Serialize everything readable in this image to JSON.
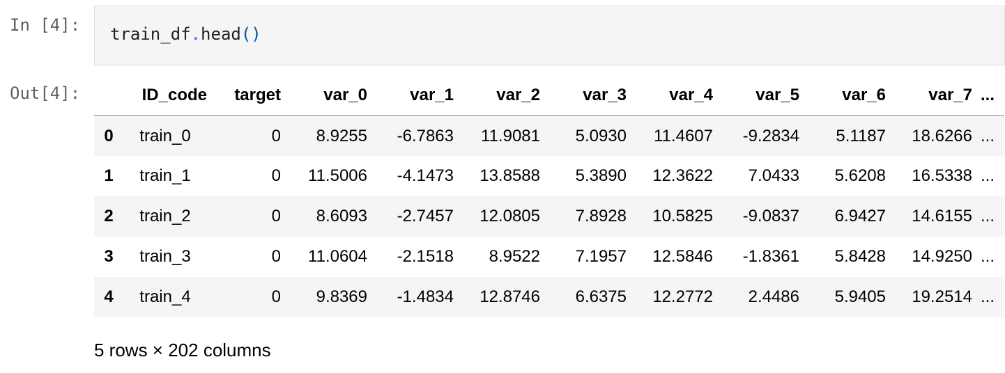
{
  "input_cell": {
    "prompt": "In [4]:",
    "code": {
      "obj": "train_df",
      "dot": ".",
      "method": "head",
      "parens": "()"
    }
  },
  "output_cell": {
    "prompt": "Out[4]:",
    "table": {
      "columns": [
        "ID_code",
        "target",
        "var_0",
        "var_1",
        "var_2",
        "var_3",
        "var_4",
        "var_5",
        "var_6",
        "var_7",
        "..."
      ],
      "rows": [
        {
          "index": "0",
          "cells": [
            "train_0",
            "0",
            "8.9255",
            "-6.7863",
            "11.9081",
            "5.0930",
            "11.4607",
            "-9.2834",
            "5.1187",
            "18.6266",
            "..."
          ]
        },
        {
          "index": "1",
          "cells": [
            "train_1",
            "0",
            "11.5006",
            "-4.1473",
            "13.8588",
            "5.3890",
            "12.3622",
            "7.0433",
            "5.6208",
            "16.5338",
            "..."
          ]
        },
        {
          "index": "2",
          "cells": [
            "train_2",
            "0",
            "8.6093",
            "-2.7457",
            "12.0805",
            "7.8928",
            "10.5825",
            "-9.0837",
            "6.9427",
            "14.6155",
            "..."
          ]
        },
        {
          "index": "3",
          "cells": [
            "train_3",
            "0",
            "11.0604",
            "-2.1518",
            "8.9522",
            "7.1957",
            "12.5846",
            "-1.8361",
            "5.8428",
            "14.9250",
            "..."
          ]
        },
        {
          "index": "4",
          "cells": [
            "train_4",
            "0",
            "9.8369",
            "-1.4834",
            "12.8746",
            "6.6375",
            "12.2772",
            "2.4486",
            "5.9405",
            "19.2514",
            "..."
          ]
        }
      ]
    },
    "summary": "5 rows × 202 columns"
  },
  "colors": {
    "prompt": "#616161",
    "code_operator": "#aa22ff",
    "code_paren": "#0055aa",
    "input_background": "#f5f5f5",
    "striped_row": "#f5f5f5"
  }
}
